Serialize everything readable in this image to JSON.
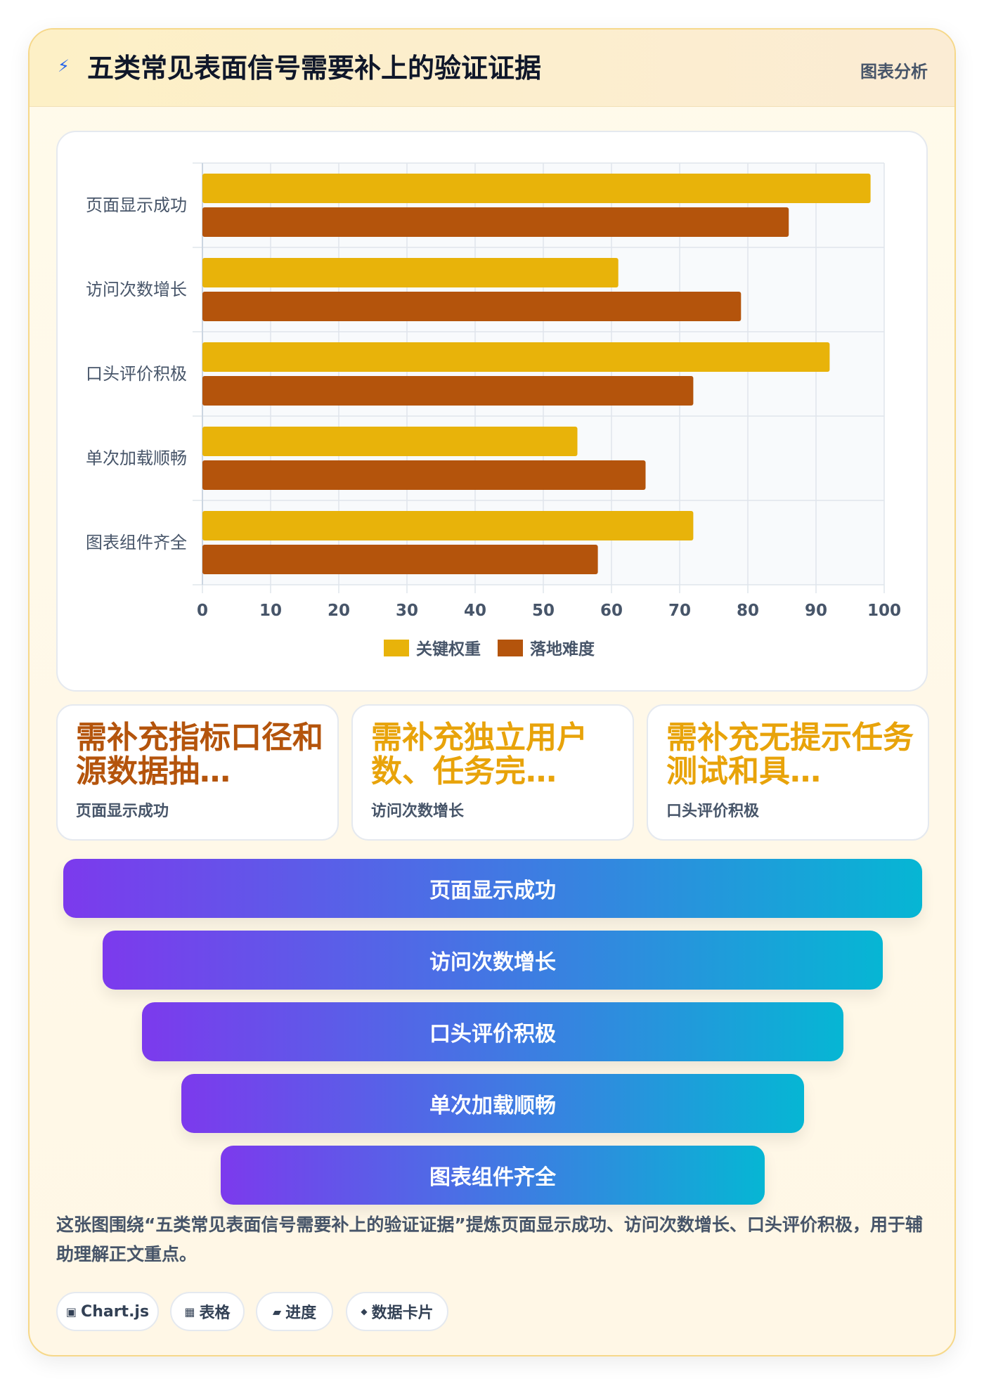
{
  "header": {
    "icon": "lightning-icon",
    "title": "五类常见表面信号需要补上的验证证据",
    "tag": "图表分析"
  },
  "chart_data": {
    "type": "bar",
    "orientation": "horizontal",
    "categories": [
      "页面显示成功",
      "访问次数增长",
      "口头评价积极",
      "单次加载顺畅",
      "图表组件齐全"
    ],
    "series": [
      {
        "name": "关键权重",
        "values": [
          98,
          61,
          92,
          55,
          72
        ],
        "color": "#e8b30a"
      },
      {
        "name": "落地难度",
        "values": [
          86,
          79,
          72,
          65,
          58
        ],
        "color": "#b4540c"
      }
    ],
    "xlim": [
      0,
      100
    ],
    "xticks": [
      0,
      10,
      20,
      30,
      40,
      50,
      60,
      70,
      80,
      90,
      100
    ],
    "grid": true,
    "legend": "bottom"
  },
  "stat_cards": [
    {
      "value": "需补充指标口径和源数据抽…",
      "label": "页面显示成功",
      "color": "#b4540c"
    },
    {
      "value": "需补充独立用户数、任务完…",
      "label": "访问次数增长",
      "color": "#e8a30a"
    },
    {
      "value": "需补充无提示任务测试和具…",
      "label": "口头评价积极",
      "color": "#e8a30a"
    }
  ],
  "funnel": [
    "页面显示成功",
    "访问次数增长",
    "口头评价积极",
    "单次加载顺畅",
    "图表组件齐全"
  ],
  "description": "这张图围绕“五类常见表面信号需要补上的验证证据”提炼页面显示成功、访问次数增长、口头评价积极，用于辅助理解正文重点。",
  "pills": [
    {
      "icon": "▣",
      "label": "Chart.js"
    },
    {
      "icon": "▦",
      "label": "表格"
    },
    {
      "icon": "▰",
      "label": "进度"
    },
    {
      "icon": "◆",
      "label": "数据卡片"
    }
  ]
}
